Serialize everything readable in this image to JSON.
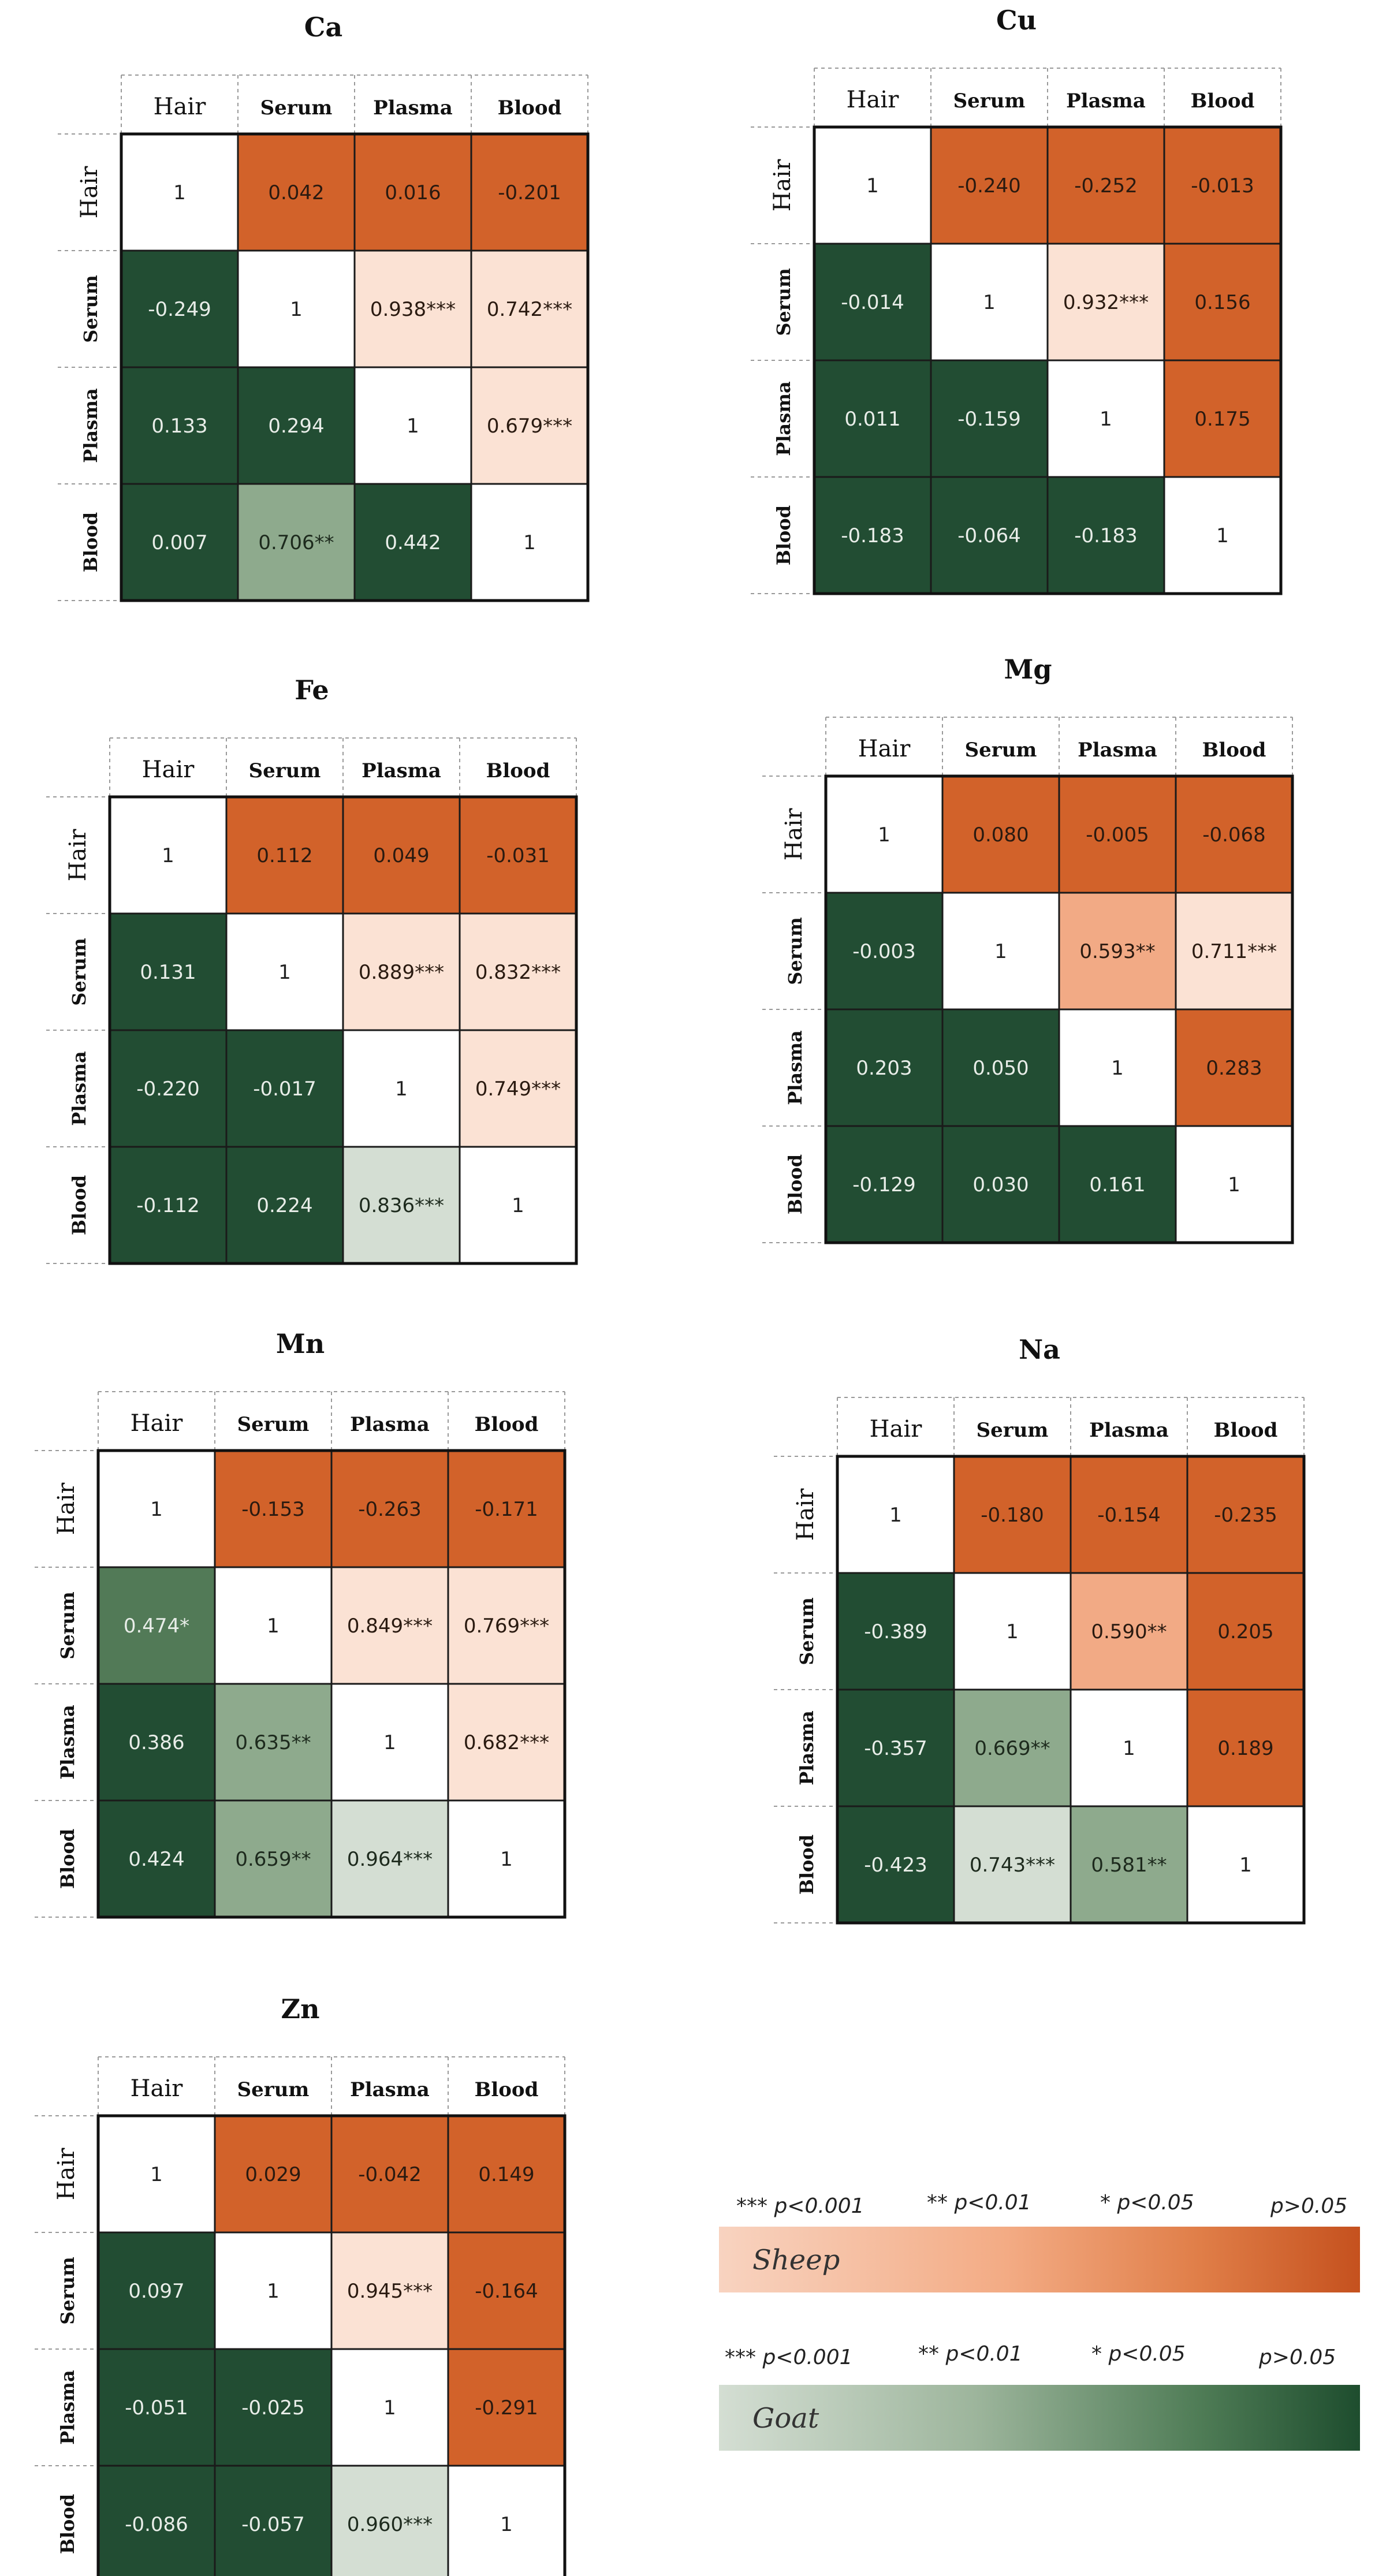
{
  "chart_data": [
    {
      "type": "heatmap",
      "title": "Ca",
      "columns": [
        "Hair",
        "Serum",
        "Plasma",
        "Blood"
      ],
      "rows": [
        "Hair",
        "Serum",
        "Plasma",
        "Blood"
      ],
      "cells": [
        [
          "1",
          "0.042",
          "0.016",
          "-0.201"
        ],
        [
          "-0.249",
          "1",
          "0.938***",
          "0.742***"
        ],
        [
          "0.133",
          "0.294",
          "1",
          "0.679***"
        ],
        [
          "0.007",
          "0.706**",
          "0.442",
          "1"
        ]
      ]
    },
    {
      "type": "heatmap",
      "title": "Cu",
      "columns": [
        "Hair",
        "Serum",
        "Plasma",
        "Blood"
      ],
      "rows": [
        "Hair",
        "Serum",
        "Plasma",
        "Blood"
      ],
      "cells": [
        [
          "1",
          "-0.240",
          "-0.252",
          "-0.013"
        ],
        [
          "-0.014",
          "1",
          "0.932***",
          "0.156"
        ],
        [
          "0.011",
          "-0.159",
          "1",
          "0.175"
        ],
        [
          "-0.183",
          "-0.064",
          "-0.183",
          "1"
        ]
      ]
    },
    {
      "type": "heatmap",
      "title": "Fe",
      "columns": [
        "Hair",
        "Serum",
        "Plasma",
        "Blood"
      ],
      "rows": [
        "Hair",
        "Serum",
        "Plasma",
        "Blood"
      ],
      "cells": [
        [
          "1",
          "0.112",
          "0.049",
          "-0.031"
        ],
        [
          "0.131",
          "1",
          "0.889***",
          "0.832***"
        ],
        [
          "-0.220",
          "-0.017",
          "1",
          "0.749***"
        ],
        [
          "-0.112",
          "0.224",
          "0.836***",
          "1"
        ]
      ]
    },
    {
      "type": "heatmap",
      "title": "Mg",
      "columns": [
        "Hair",
        "Serum",
        "Plasma",
        "Blood"
      ],
      "rows": [
        "Hair",
        "Serum",
        "Plasma",
        "Blood"
      ],
      "cells": [
        [
          "1",
          "0.080",
          "-0.005",
          "-0.068"
        ],
        [
          "-0.003",
          "1",
          "0.593**",
          "0.711***"
        ],
        [
          "0.203",
          "0.050",
          "1",
          "0.283"
        ],
        [
          "-0.129",
          "0.030",
          "0.161",
          "1"
        ]
      ]
    },
    {
      "type": "heatmap",
      "title": "Mn",
      "columns": [
        "Hair",
        "Serum",
        "Plasma",
        "Blood"
      ],
      "rows": [
        "Hair",
        "Serum",
        "Plasma",
        "Blood"
      ],
      "cells": [
        [
          "1",
          "-0.153",
          "-0.263",
          "-0.171"
        ],
        [
          "0.474*",
          "1",
          "0.849***",
          "0.769***"
        ],
        [
          "0.386",
          "0.635**",
          "1",
          "0.682***"
        ],
        [
          "0.424",
          "0.659**",
          "0.964***",
          "1"
        ]
      ]
    },
    {
      "type": "heatmap",
      "title": "Na",
      "columns": [
        "Hair",
        "Serum",
        "Plasma",
        "Blood"
      ],
      "rows": [
        "Hair",
        "Serum",
        "Plasma",
        "Blood"
      ],
      "cells": [
        [
          "1",
          "-0.180",
          "-0.154",
          "-0.235"
        ],
        [
          "-0.389",
          "1",
          "0.590**",
          "0.205"
        ],
        [
          "-0.357",
          "0.669**",
          "1",
          "0.189"
        ],
        [
          "-0.423",
          "0.743***",
          "0.581**",
          "1"
        ]
      ]
    },
    {
      "type": "heatmap",
      "title": "Zn",
      "columns": [
        "Hair",
        "Serum",
        "Plasma",
        "Blood"
      ],
      "rows": [
        "Hair",
        "Serum",
        "Plasma",
        "Blood"
      ],
      "cells": [
        [
          "1",
          "0.029",
          "-0.042",
          "0.149"
        ],
        [
          "0.097",
          "1",
          "0.945***",
          "-0.164"
        ],
        [
          "-0.051",
          "-0.025",
          "1",
          "-0.291"
        ],
        [
          "-0.086",
          "-0.057",
          "0.960***",
          "1"
        ]
      ]
    }
  ],
  "legend": {
    "labels": [
      "*** p<0.001",
      "** p<0.01",
      "* p<0.05",
      "p>0.05"
    ],
    "sheep": "Sheep",
    "goat": "Goat"
  },
  "colors": {
    "sheep_p001": "#fbe2d4",
    "sheep_p01": "#f2aa85",
    "sheep_p05": "#e28a5a",
    "sheep_ns": "#d2622a",
    "goat_p001": "#d4ded3",
    "goat_p01": "#8eaa8d",
    "goat_p05": "#527a57",
    "goat_ns": "#224d33",
    "diagonal": "#ffffff"
  }
}
